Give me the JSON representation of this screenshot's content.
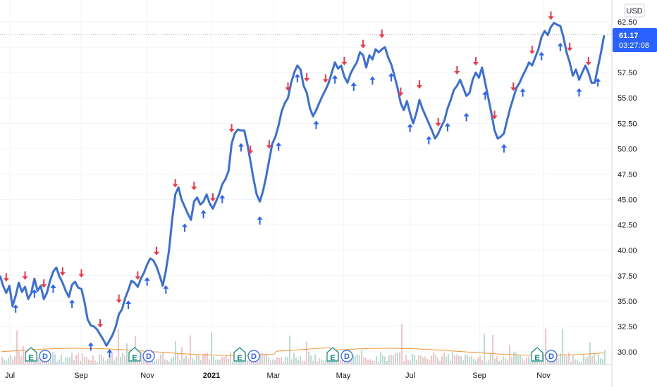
{
  "chart_data": {
    "type": "line",
    "currency": "USD",
    "price_axis": {
      "ticks": [
        "62.50",
        "60.00",
        "57.50",
        "55.00",
        "52.50",
        "50.00",
        "47.50",
        "45.00",
        "42.50",
        "40.00",
        "37.50",
        "35.00",
        "32.50",
        "30.00"
      ],
      "ylim": [
        29.2,
        63.5
      ]
    },
    "time_axis": {
      "ticks": [
        "Jul",
        "Sep",
        "Nov",
        "2021",
        "Mar",
        "May",
        "Jul",
        "Sep",
        "Nov"
      ]
    },
    "last_price": {
      "value": "61.17",
      "countdown": "03:27:08"
    },
    "series": [
      {
        "name": "Price",
        "color": "#3a6fd8",
        "values": [
          37.5,
          36.5,
          35.8,
          36.5,
          34.5,
          35.5,
          36.8,
          35.9,
          36.4,
          35.2,
          35.8,
          37.2,
          36.0,
          36.5,
          35.2,
          35.8,
          37.0,
          37.9,
          38.3,
          37.4,
          36.8,
          36.0,
          35.4,
          36.6,
          36.9,
          36.3,
          36.2,
          34.9,
          33.2,
          32.6,
          32.5,
          32.2,
          31.7,
          31.2,
          30.6,
          31.1,
          31.7,
          32.5,
          33.7,
          34.2,
          35.3,
          36.1,
          37.0,
          36.8,
          36.4,
          37.2,
          37.8,
          38.6,
          39.2,
          39.0,
          38.4,
          37.5,
          36.5,
          38.0,
          40.0,
          43.0,
          45.5,
          46.2,
          45.0,
          44.3,
          43.6,
          43.0,
          44.8,
          45.2,
          44.5,
          44.8,
          45.5,
          44.6,
          44.1,
          44.8,
          45.5,
          46.5,
          47.0,
          47.8,
          50.5,
          51.5,
          51.9,
          51.8,
          51.8,
          50.5,
          48.8,
          47.0,
          45.5,
          44.8,
          45.8,
          47.2,
          48.9,
          50.5,
          51.2,
          52.3,
          53.7,
          54.5,
          55.0,
          56.5,
          57.5,
          58.2,
          57.8,
          56.2,
          55.5,
          54.0,
          53.2,
          53.8,
          54.5,
          55.2,
          55.8,
          56.5,
          57.5,
          58.5,
          57.9,
          58.2,
          57.1,
          56.5,
          57.4,
          58.0,
          58.5,
          59.5,
          59.2,
          58.0,
          59.2,
          58.8,
          59.8,
          59.5,
          59.8,
          60.0,
          59.0,
          58.3,
          57.2,
          56.0,
          54.5,
          53.8,
          54.7,
          53.5,
          52.5,
          53.5,
          54.8,
          53.9,
          53.2,
          52.5,
          51.8,
          51.0,
          51.5,
          52.2,
          52.8,
          54.0,
          54.8,
          55.8,
          56.2,
          56.8,
          56.0,
          55.2,
          55.5,
          56.8,
          57.5,
          57.0,
          58.0,
          56.5,
          55.0,
          53.5,
          51.8,
          51.0,
          51.2,
          51.5,
          52.8,
          54.0,
          55.0,
          56.0,
          56.5,
          57.2,
          57.8,
          58.5,
          58.2,
          59.0,
          59.8,
          61.0,
          61.6,
          61.2,
          62.0,
          62.4,
          62.2,
          62.1,
          61.0,
          59.5,
          58.5,
          57.2,
          57.8,
          56.8,
          57.5,
          58.2,
          57.5,
          56.5,
          56.5,
          58.0,
          59.5,
          61.17
        ]
      }
    ],
    "signal_up_count": 60,
    "signal_down_count": 58,
    "earnings_markers": [
      "E",
      "D"
    ],
    "volume_ma": "orange line",
    "colors": {
      "price_line": "#3a6fd8",
      "up_signal": "#2962ff",
      "down_signal": "#f23645",
      "earnings": "#00897b",
      "dividend": "#2962ff",
      "volume_ma": "#f57c00",
      "label_bg": "#2962ff"
    },
    "grid": true
  }
}
